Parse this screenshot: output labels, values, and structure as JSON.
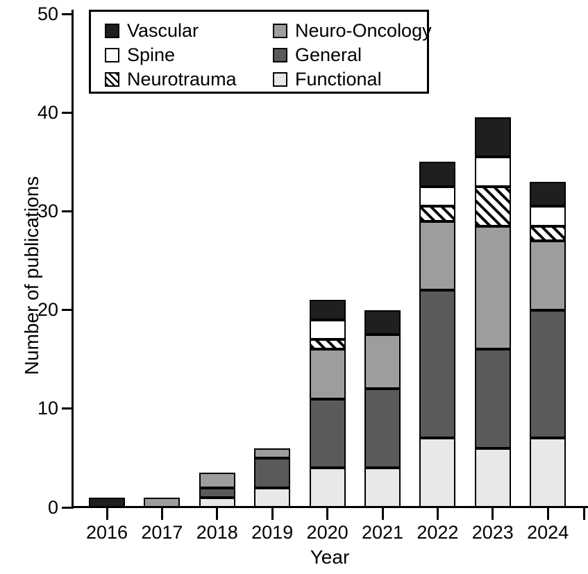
{
  "figure_title": "",
  "axes": {
    "y_title": "Number of publications",
    "x_title": "Year",
    "y_ticks": [
      0,
      10,
      20,
      30,
      40,
      50
    ],
    "ylim": [
      0,
      50
    ]
  },
  "legend": {
    "columns": [
      [
        "Vascular",
        "Spine",
        "Neurotrauma"
      ],
      [
        "Neuro-Oncology",
        "General",
        "Functional"
      ]
    ]
  },
  "colors": {
    "vascular": "#1f1f1f",
    "spine": "#ffffff",
    "neurotrauma_base": "#ffffff",
    "neuro_oncology": "#9d9d9d",
    "general": "#5a5a5a",
    "functional": "#e8e8e8",
    "axis": "#000000"
  },
  "chart_data": {
    "type": "bar",
    "stacked": true,
    "title": "",
    "xlabel": "Year",
    "ylabel": "Number of publications",
    "ylim": [
      0,
      50
    ],
    "grid": false,
    "legend_position": "top-left-inside",
    "categories": [
      "2016",
      "2017",
      "2018",
      "2019",
      "2020",
      "2021",
      "2022",
      "2023",
      "2024"
    ],
    "stack_order_bottom_to_top": [
      "Functional",
      "General",
      "Neuro-Oncology",
      "Neurotrauma",
      "Spine",
      "Vascular"
    ],
    "series": [
      {
        "name": "Functional",
        "color": "#e8e8e8",
        "pattern": "solid",
        "values": [
          0,
          0,
          1,
          2,
          4,
          4,
          7,
          6,
          7
        ]
      },
      {
        "name": "General",
        "color": "#5a5a5a",
        "pattern": "solid",
        "values": [
          0,
          0,
          1,
          3,
          7,
          8,
          15,
          10,
          13
        ]
      },
      {
        "name": "Neuro-Oncology",
        "color": "#9d9d9d",
        "pattern": "solid",
        "values": [
          0,
          1,
          1.5,
          1,
          5,
          5.5,
          7,
          12.5,
          7
        ]
      },
      {
        "name": "Neurotrauma",
        "color": "#ffffff",
        "pattern": "diagonal-hatch",
        "values": [
          0,
          0,
          0,
          0,
          1,
          0,
          1.5,
          4,
          1.5
        ]
      },
      {
        "name": "Spine",
        "color": "#ffffff",
        "pattern": "solid",
        "values": [
          0,
          0,
          0,
          0,
          2,
          0,
          2,
          3,
          2
        ]
      },
      {
        "name": "Vascular",
        "color": "#1f1f1f",
        "pattern": "solid",
        "values": [
          1,
          0,
          0,
          0,
          2,
          2.5,
          2.5,
          4,
          2.5
        ]
      }
    ],
    "totals": [
      1,
      1,
      3.5,
      6,
      21,
      20,
      35,
      39.5,
      33
    ]
  }
}
